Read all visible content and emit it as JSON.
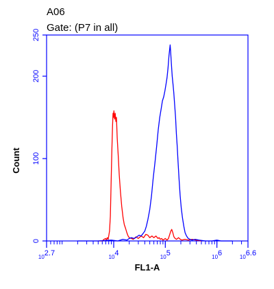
{
  "chart_data": {
    "type": "line",
    "title": "A06",
    "subtitle": "Gate: (P7 in all)",
    "xlabel": "FL1-A",
    "ylabel": "Count",
    "x_scale": "log",
    "xlim": [
      500,
      4000000
    ],
    "ylim": [
      0,
      250
    ],
    "y_ticks": [
      0,
      100,
      200,
      250
    ],
    "x_tick_labels": [
      {
        "value": 500,
        "label": "10^2.7"
      },
      {
        "value": 10000,
        "label": "10^4"
      },
      {
        "value": 100000,
        "label": "10^5"
      },
      {
        "value": 1000000,
        "label": "10^6"
      },
      {
        "value": 4000000,
        "label": "10^6.6"
      }
    ],
    "grid": false,
    "legend": "none",
    "series": [
      {
        "color": "#ff0000",
        "points": [
          [
            5000,
            0
          ],
          [
            6000,
            0
          ],
          [
            6500,
            2
          ],
          [
            7000,
            3
          ],
          [
            7200,
            1
          ],
          [
            7500,
            4
          ],
          [
            7800,
            2
          ],
          [
            8000,
            6
          ],
          [
            8300,
            12
          ],
          [
            8600,
            30
          ],
          [
            8900,
            70
          ],
          [
            9200,
            110
          ],
          [
            9500,
            140
          ],
          [
            9700,
            155
          ],
          [
            9900,
            150
          ],
          [
            10100,
            158
          ],
          [
            10400,
            148
          ],
          [
            10700,
            155
          ],
          [
            11000,
            145
          ],
          [
            11300,
            150
          ],
          [
            11700,
            125
          ],
          [
            12200,
            105
          ],
          [
            12800,
            80
          ],
          [
            13500,
            60
          ],
          [
            14300,
            42
          ],
          [
            15200,
            28
          ],
          [
            16000,
            20
          ],
          [
            17000,
            15
          ],
          [
            18000,
            10
          ],
          [
            19000,
            6
          ],
          [
            20000,
            4
          ],
          [
            22000,
            3
          ],
          [
            24000,
            2
          ],
          [
            27000,
            5
          ],
          [
            30000,
            3
          ],
          [
            34000,
            6
          ],
          [
            38000,
            4
          ],
          [
            42000,
            8
          ],
          [
            46000,
            7
          ],
          [
            50000,
            4
          ],
          [
            55000,
            6
          ],
          [
            60000,
            4
          ],
          [
            66000,
            6
          ],
          [
            72000,
            3
          ],
          [
            76000,
            4
          ],
          [
            80000,
            2
          ],
          [
            85000,
            3
          ],
          [
            90000,
            1
          ],
          [
            95000,
            2
          ],
          [
            100000,
            3
          ],
          [
            108000,
            1
          ],
          [
            115000,
            3
          ],
          [
            122000,
            8
          ],
          [
            128000,
            12
          ],
          [
            133000,
            14
          ],
          [
            140000,
            10
          ],
          [
            147000,
            5
          ],
          [
            155000,
            3
          ],
          [
            165000,
            2
          ],
          [
            180000,
            4
          ],
          [
            195000,
            2
          ],
          [
            210000,
            1
          ],
          [
            240000,
            2
          ],
          [
            280000,
            1
          ],
          [
            330000,
            2
          ],
          [
            400000,
            1
          ],
          [
            500000,
            0
          ]
        ]
      },
      {
        "color": "#0000ff",
        "points": [
          [
            2000,
            0
          ],
          [
            5000,
            0
          ],
          [
            9000,
            1
          ],
          [
            12000,
            0
          ],
          [
            15000,
            2
          ],
          [
            18000,
            1
          ],
          [
            20000,
            3
          ],
          [
            22000,
            4
          ],
          [
            25000,
            3
          ],
          [
            28000,
            5
          ],
          [
            31000,
            7
          ],
          [
            34000,
            6
          ],
          [
            37000,
            9
          ],
          [
            40000,
            12
          ],
          [
            43000,
            18
          ],
          [
            46000,
            26
          ],
          [
            50000,
            38
          ],
          [
            54000,
            55
          ],
          [
            58000,
            75
          ],
          [
            63000,
            95
          ],
          [
            68000,
            115
          ],
          [
            73000,
            135
          ],
          [
            78000,
            150
          ],
          [
            83000,
            160
          ],
          [
            88000,
            170
          ],
          [
            93000,
            175
          ],
          [
            98000,
            182
          ],
          [
            103000,
            190
          ],
          [
            108000,
            198
          ],
          [
            113000,
            210
          ],
          [
            118000,
            225
          ],
          [
            121000,
            232
          ],
          [
            124000,
            238
          ],
          [
            127000,
            230
          ],
          [
            131000,
            215
          ],
          [
            136000,
            200
          ],
          [
            141000,
            190
          ],
          [
            146000,
            180
          ],
          [
            152000,
            165
          ],
          [
            158000,
            150
          ],
          [
            164000,
            130
          ],
          [
            170000,
            115
          ],
          [
            177000,
            95
          ],
          [
            185000,
            75
          ],
          [
            194000,
            55
          ],
          [
            204000,
            40
          ],
          [
            215000,
            28
          ],
          [
            228000,
            18
          ],
          [
            242000,
            10
          ],
          [
            258000,
            6
          ],
          [
            278000,
            3
          ],
          [
            300000,
            2
          ],
          [
            330000,
            1
          ],
          [
            380000,
            2
          ],
          [
            450000,
            1
          ],
          [
            600000,
            0
          ],
          [
            800000,
            0
          ],
          [
            1000000,
            1
          ],
          [
            1200000,
            0
          ],
          [
            2000000,
            0
          ]
        ]
      }
    ]
  }
}
